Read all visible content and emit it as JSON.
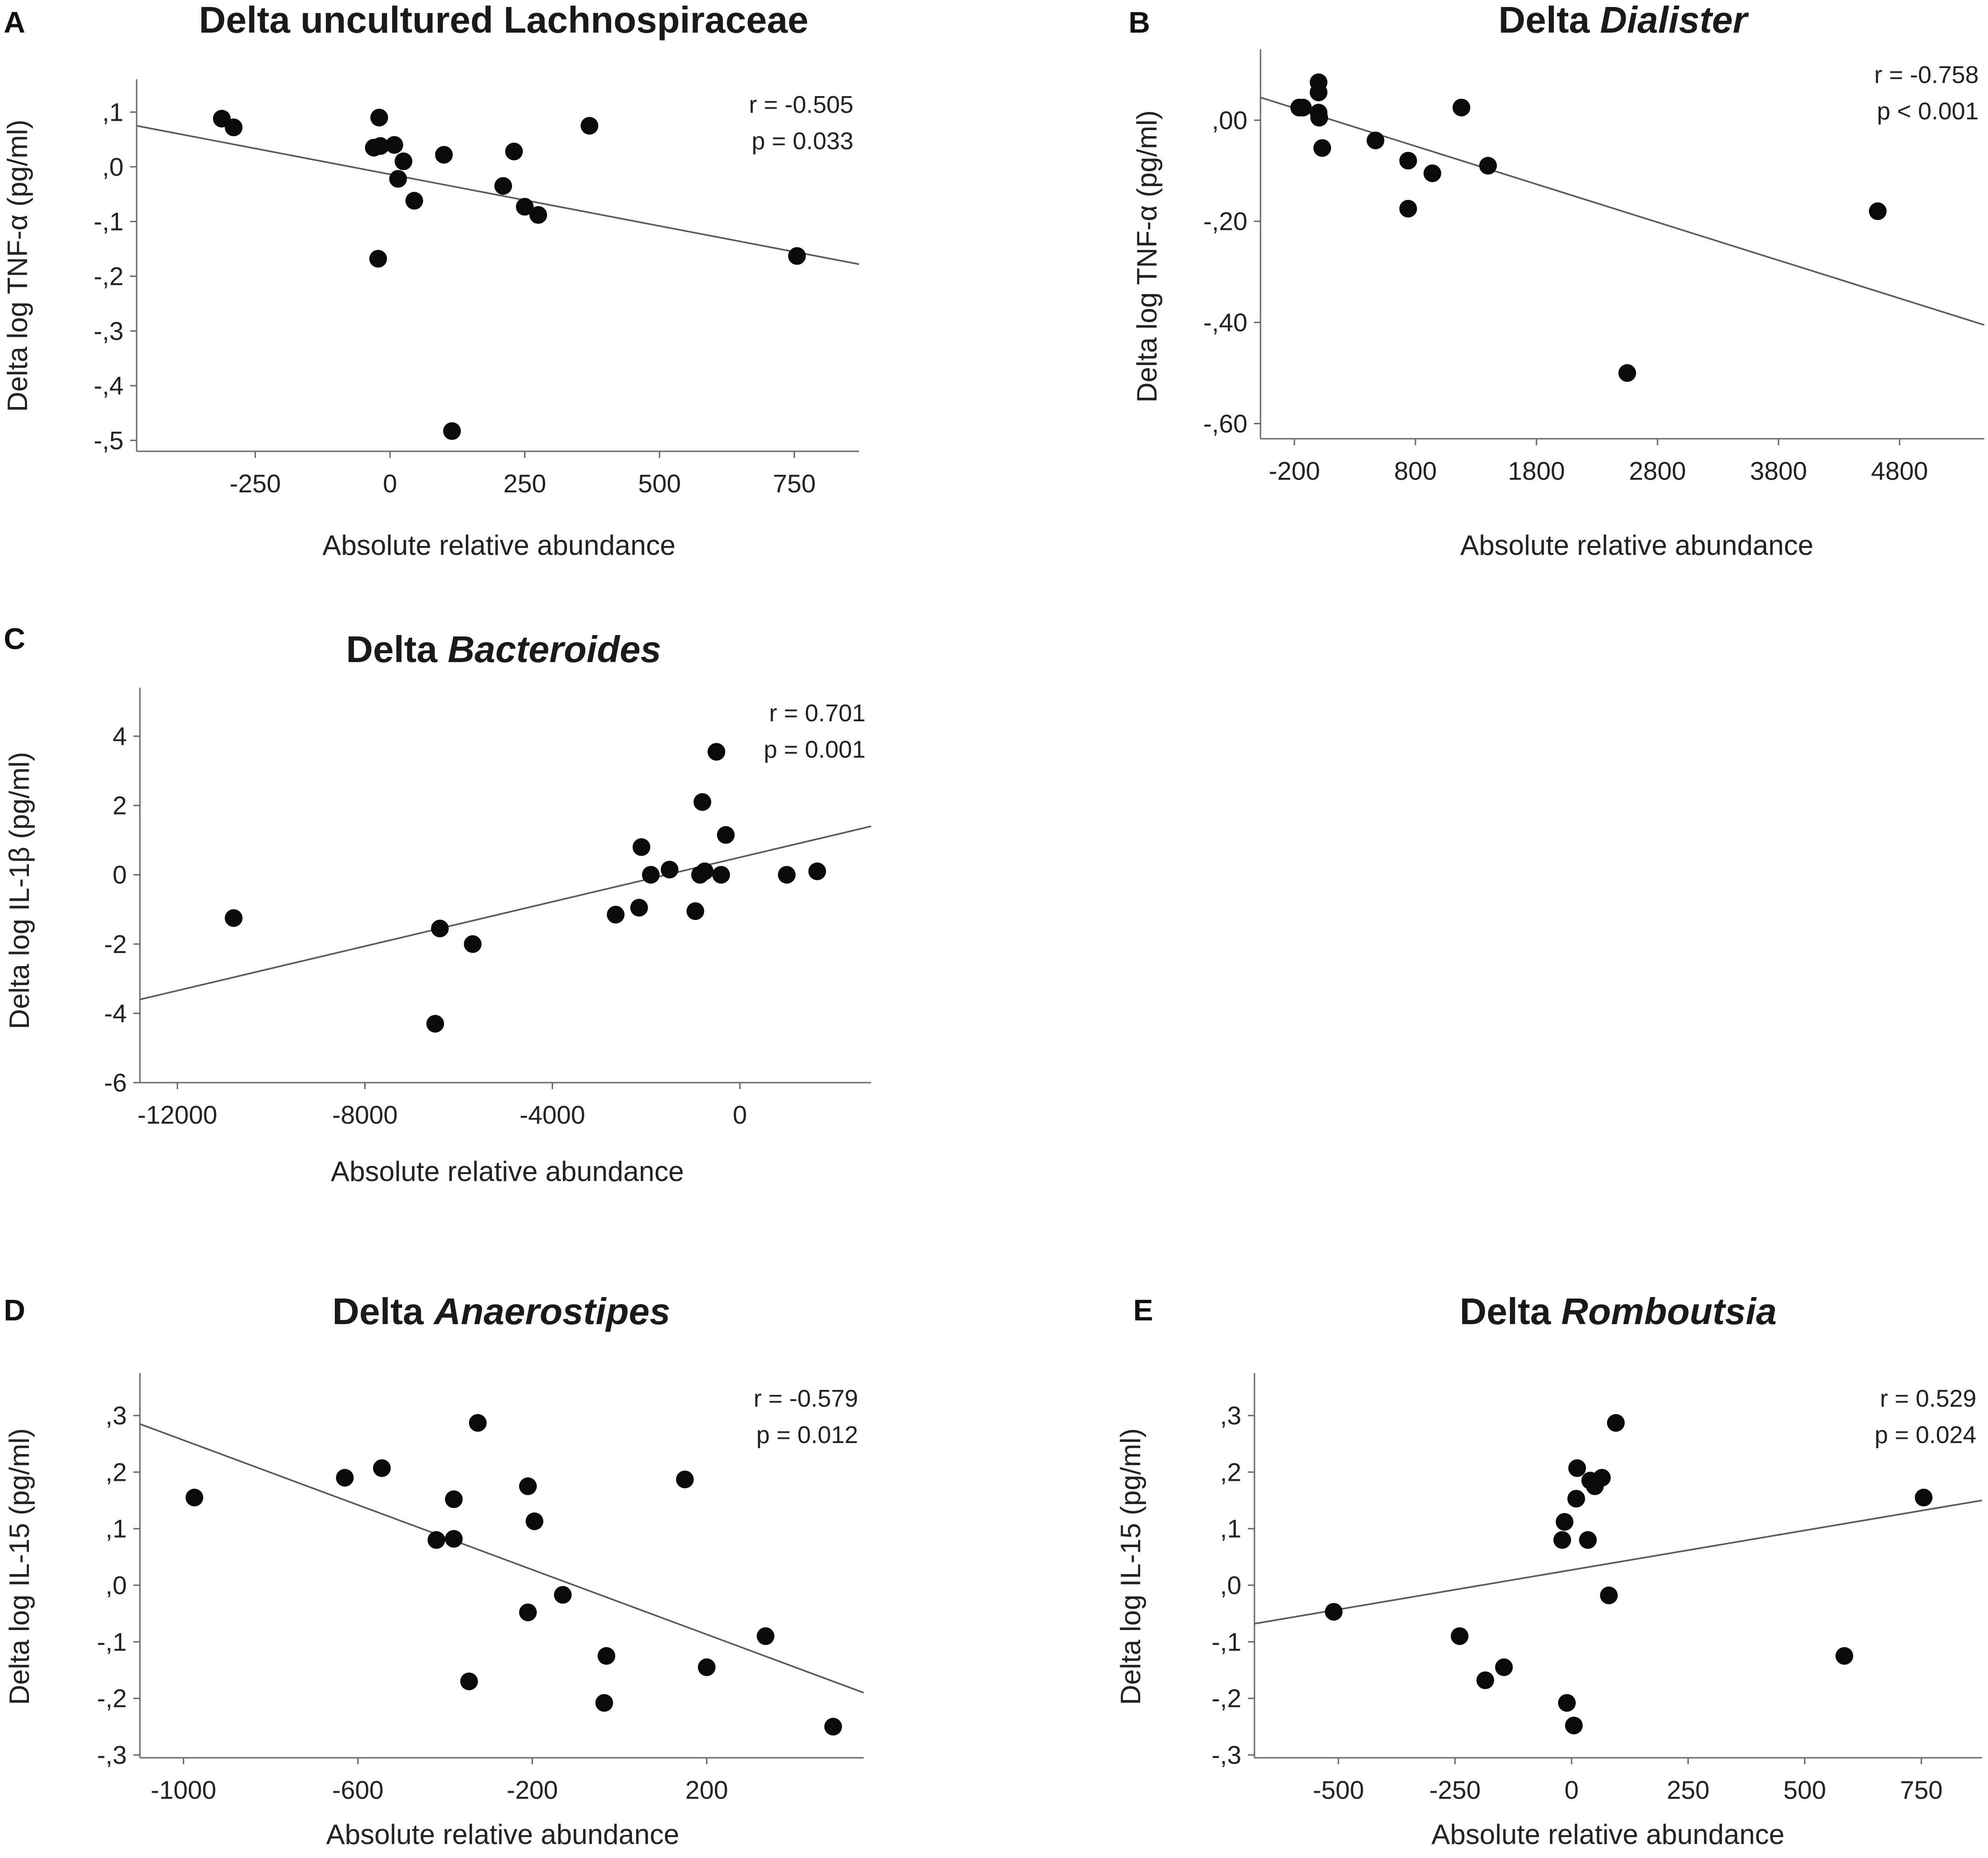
{
  "chart_data": [
    {
      "panel": "A",
      "type": "scatter",
      "title": "Delta uncultured Lachnospiraceae",
      "title_parts": [
        {
          "text": "Delta uncultured Lachnospiraceae",
          "italic": false
        }
      ],
      "xlabel": "Absolute relative abundance",
      "ylabel": "Delta log TNF-α (pg/ml)",
      "xlim": [
        -470,
        870
      ],
      "ylim": [
        -0.52,
        0.16
      ],
      "xticks": [
        -250,
        0,
        250,
        500,
        750
      ],
      "xtick_labels": [
        "-250",
        "0",
        "250",
        "500",
        "750"
      ],
      "yticks": [
        0.1,
        0.0,
        -0.1,
        -0.2,
        -0.3,
        -0.4,
        -0.5
      ],
      "ytick_labels": [
        ",1",
        ",0",
        "-,1",
        "-,2",
        "-,3",
        "-,4",
        "-,5"
      ],
      "stats": {
        "r": "r = -0.505",
        "p": "p = 0.033"
      },
      "fit_line": {
        "x": [
          -470,
          870
        ],
        "y": [
          0.075,
          -0.178
        ]
      },
      "points": [
        {
          "x": -312,
          "y": 0.088
        },
        {
          "x": -290,
          "y": 0.072
        },
        {
          "x": -20,
          "y": 0.09
        },
        {
          "x": -30,
          "y": 0.035
        },
        {
          "x": -18,
          "y": 0.038
        },
        {
          "x": 8,
          "y": 0.04
        },
        {
          "x": 25,
          "y": 0.01
        },
        {
          "x": 15,
          "y": -0.022
        },
        {
          "x": 45,
          "y": -0.062
        },
        {
          "x": 100,
          "y": 0.022
        },
        {
          "x": 210,
          "y": -0.035
        },
        {
          "x": 230,
          "y": 0.028
        },
        {
          "x": 250,
          "y": -0.073
        },
        {
          "x": 275,
          "y": -0.088
        },
        {
          "x": 370,
          "y": 0.075
        },
        {
          "x": -22,
          "y": -0.168
        },
        {
          "x": 755,
          "y": -0.163
        },
        {
          "x": 115,
          "y": -0.483
        }
      ]
    },
    {
      "panel": "B",
      "type": "scatter",
      "title": "Delta Dialister",
      "title_parts": [
        {
          "text": "Delta ",
          "italic": false
        },
        {
          "text": "Dialister",
          "italic": true
        }
      ],
      "xlabel": "Absolute relative abundance",
      "ylabel": "Delta log TNF-α (pg/ml)",
      "xlim": [
        -480,
        5500
      ],
      "ylim": [
        -0.63,
        0.14
      ],
      "xticks": [
        -200,
        800,
        1800,
        2800,
        3800,
        4800
      ],
      "xtick_labels": [
        "-200",
        "800",
        "1800",
        "2800",
        "3800",
        "4800"
      ],
      "yticks": [
        0.0,
        -0.2,
        -0.4,
        -0.6
      ],
      "ytick_labels": [
        ",00",
        "-,20",
        "-,40",
        "-,60"
      ],
      "stats": {
        "r": "r = -0.758",
        "p": "p < 0.001"
      },
      "fit_line": {
        "x": [
          -480,
          5500
        ],
        "y": [
          0.045,
          -0.405
        ]
      },
      "points": [
        {
          "x": -160,
          "y": 0.025
        },
        {
          "x": -130,
          "y": 0.025
        },
        {
          "x": 0,
          "y": 0.075
        },
        {
          "x": 0,
          "y": 0.055
        },
        {
          "x": 0,
          "y": 0.015
        },
        {
          "x": 5,
          "y": 0.005
        },
        {
          "x": 30,
          "y": -0.055
        },
        {
          "x": 470,
          "y": -0.04
        },
        {
          "x": 740,
          "y": -0.08
        },
        {
          "x": 740,
          "y": -0.175
        },
        {
          "x": 940,
          "y": -0.105
        },
        {
          "x": 1180,
          "y": 0.025
        },
        {
          "x": 1400,
          "y": -0.09
        },
        {
          "x": 2550,
          "y": -0.5
        },
        {
          "x": 4620,
          "y": -0.18
        }
      ]
    },
    {
      "panel": "C",
      "type": "scatter",
      "title": "Delta Bacteroides",
      "title_parts": [
        {
          "text": "Delta ",
          "italic": false
        },
        {
          "text": "Bacteroides",
          "italic": true
        }
      ],
      "xlabel": "Absolute relative abundance",
      "ylabel": "Delta log IL-1β (pg/ml)",
      "xlim": [
        -12800,
        2800
      ],
      "ylim": [
        -6.0,
        5.4
      ],
      "xticks": [
        -12000,
        -8000,
        -4000,
        0
      ],
      "xtick_labels": [
        "-12000",
        "-8000",
        "-4000",
        "0"
      ],
      "yticks": [
        4,
        2,
        0,
        -2,
        -4,
        -6
      ],
      "ytick_labels": [
        "4",
        "2",
        "0",
        "-2",
        "-4",
        "-6"
      ],
      "stats": {
        "r": "r = 0.701",
        "p": "p = 0.001"
      },
      "fit_line": {
        "x": [
          -12800,
          2800
        ],
        "y": [
          -3.6,
          1.4
        ]
      },
      "points": [
        {
          "x": -10800,
          "y": -1.25
        },
        {
          "x": -6400,
          "y": -1.55
        },
        {
          "x": -6500,
          "y": -4.3
        },
        {
          "x": -5700,
          "y": -2.0
        },
        {
          "x": -2650,
          "y": -1.15
        },
        {
          "x": -2150,
          "y": -0.95
        },
        {
          "x": -2100,
          "y": 0.8
        },
        {
          "x": -1900,
          "y": 0.0
        },
        {
          "x": -1500,
          "y": 0.15
        },
        {
          "x": -950,
          "y": -1.05
        },
        {
          "x": -850,
          "y": 0.0
        },
        {
          "x": -800,
          "y": 2.1
        },
        {
          "x": -750,
          "y": 0.1
        },
        {
          "x": -500,
          "y": 3.55
        },
        {
          "x": -400,
          "y": 0.0
        },
        {
          "x": -300,
          "y": 1.15
        },
        {
          "x": 1000,
          "y": 0.0
        },
        {
          "x": 1650,
          "y": 0.1
        }
      ]
    },
    {
      "panel": "D",
      "type": "scatter",
      "title": "Delta Anaerostipes",
      "title_parts": [
        {
          "text": "Delta ",
          "italic": false
        },
        {
          "text": "Anaerostipes",
          "italic": true
        }
      ],
      "xlabel": "Absolute relative abundance",
      "ylabel": "Delta log IL-15 (pg/ml)",
      "xlim": [
        -1100,
        560
      ],
      "ylim": [
        -0.305,
        0.375
      ],
      "xticks": [
        -1000,
        -600,
        -200,
        200
      ],
      "xtick_labels": [
        "-1000",
        "-600",
        "-200",
        "200"
      ],
      "yticks": [
        0.3,
        0.2,
        0.1,
        0.0,
        -0.1,
        -0.2,
        -0.3
      ],
      "ytick_labels": [
        ",3",
        ",2",
        ",1",
        ",0",
        "-,1",
        "-,2",
        "-,3"
      ],
      "stats": {
        "r": "r = -0.579",
        "p": "p = 0.012"
      },
      "fit_line": {
        "x": [
          -1100,
          560
        ],
        "y": [
          0.285,
          -0.19
        ]
      },
      "points": [
        {
          "x": -975,
          "y": 0.155
        },
        {
          "x": -630,
          "y": 0.19
        },
        {
          "x": -545,
          "y": 0.207
        },
        {
          "x": -420,
          "y": 0.08
        },
        {
          "x": -380,
          "y": 0.152
        },
        {
          "x": -380,
          "y": 0.082
        },
        {
          "x": -345,
          "y": -0.17
        },
        {
          "x": -325,
          "y": 0.287
        },
        {
          "x": -210,
          "y": 0.175
        },
        {
          "x": -210,
          "y": -0.048
        },
        {
          "x": -195,
          "y": 0.113
        },
        {
          "x": -130,
          "y": -0.017
        },
        {
          "x": -30,
          "y": -0.125
        },
        {
          "x": -35,
          "y": -0.208
        },
        {
          "x": 150,
          "y": 0.187
        },
        {
          "x": 200,
          "y": -0.145
        },
        {
          "x": 335,
          "y": -0.09
        },
        {
          "x": 490,
          "y": -0.25
        }
      ]
    },
    {
      "panel": "E",
      "type": "scatter",
      "title": "Delta Romboutsia",
      "title_parts": [
        {
          "text": "Delta ",
          "italic": false
        },
        {
          "text": "Romboutsia",
          "italic": true
        }
      ],
      "xlabel": "Absolute relative abundance",
      "ylabel": "Delta log IL-15 (pg/ml)",
      "xlim": [
        -680,
        880
      ],
      "ylim": [
        -0.305,
        0.375
      ],
      "xticks": [
        -500,
        -250,
        0,
        250,
        500,
        750
      ],
      "xtick_labels": [
        "-500",
        "-250",
        "0",
        "250",
        "500",
        "750"
      ],
      "yticks": [
        0.3,
        0.2,
        0.1,
        0.0,
        -0.1,
        -0.2,
        -0.3
      ],
      "ytick_labels": [
        ",3",
        ",2",
        ",1",
        ",0",
        "-,1",
        "-,2",
        "-,3"
      ],
      "stats": {
        "r": "r = 0.529",
        "p": "p = 0.024"
      },
      "fit_line": {
        "x": [
          -680,
          880
        ],
        "y": [
          -0.068,
          0.15
        ]
      },
      "points": [
        {
          "x": -510,
          "y": -0.047
        },
        {
          "x": -240,
          "y": -0.09
        },
        {
          "x": -185,
          "y": -0.168
        },
        {
          "x": -145,
          "y": -0.145
        },
        {
          "x": -20,
          "y": 0.08
        },
        {
          "x": -15,
          "y": 0.112
        },
        {
          "x": -10,
          "y": -0.208
        },
        {
          "x": 5,
          "y": -0.248
        },
        {
          "x": 10,
          "y": 0.153
        },
        {
          "x": 12,
          "y": 0.207
        },
        {
          "x": 35,
          "y": 0.08
        },
        {
          "x": 40,
          "y": 0.185
        },
        {
          "x": 50,
          "y": 0.175
        },
        {
          "x": 65,
          "y": 0.19
        },
        {
          "x": 80,
          "y": -0.018
        },
        {
          "x": 95,
          "y": 0.287
        },
        {
          "x": 585,
          "y": -0.125
        },
        {
          "x": 755,
          "y": 0.155
        }
      ]
    }
  ]
}
